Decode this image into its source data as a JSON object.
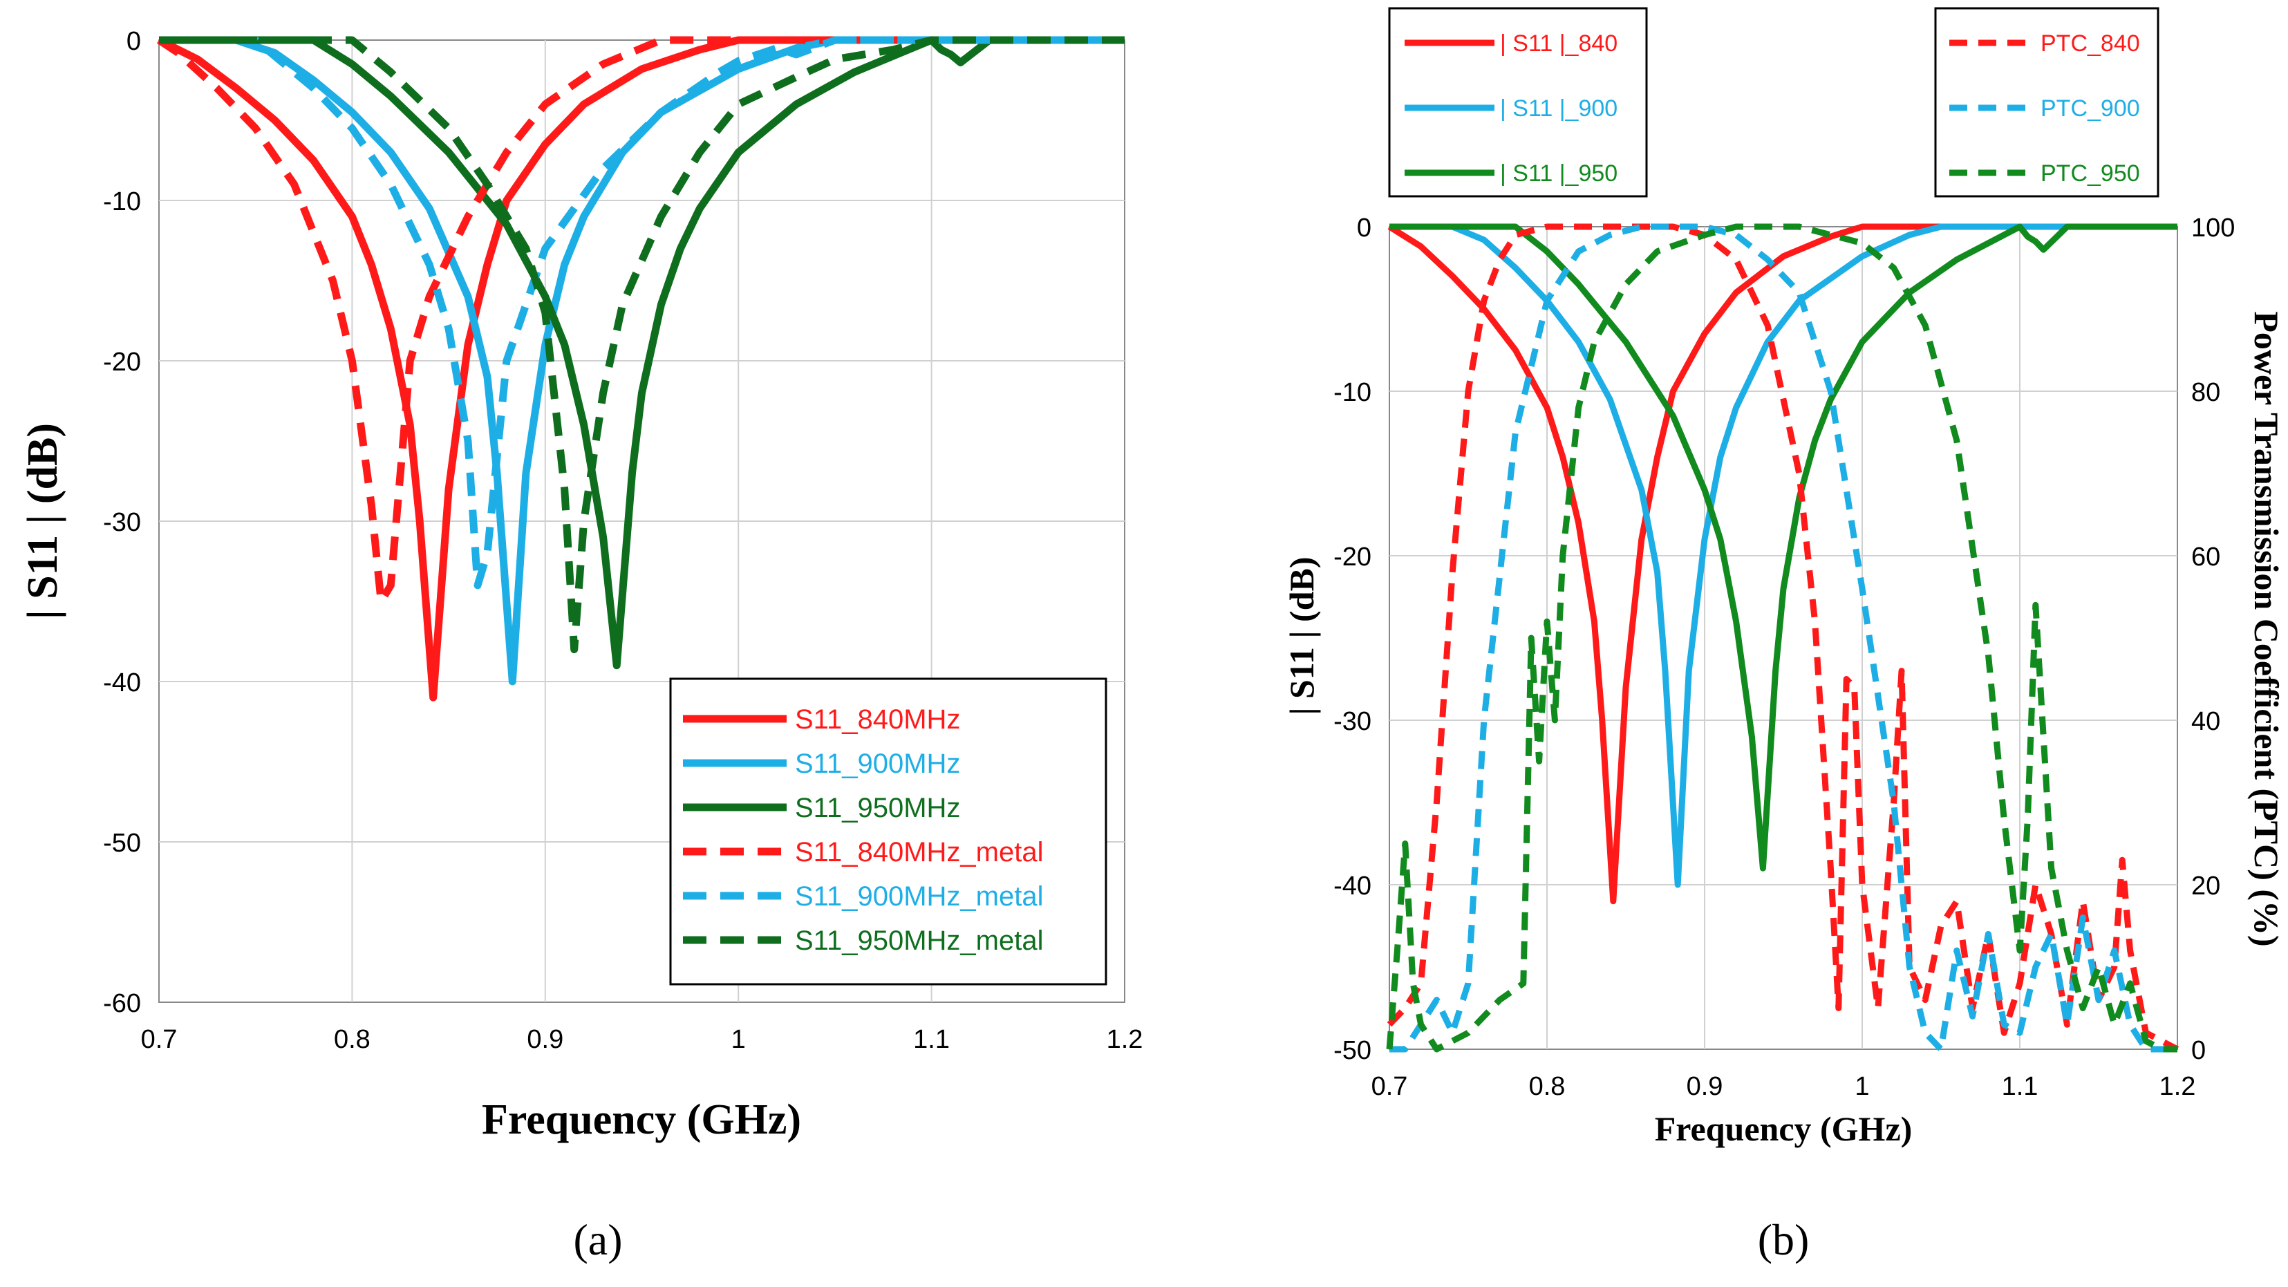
{
  "colors": {
    "red": "#ff1a1a",
    "blue": "#1eaee6",
    "green": "#0e6e1e",
    "green_b": "#118a1e"
  },
  "chart_data": [
    {
      "type": "line",
      "panel_label": "a",
      "xlabel": "Frequency (GHz)",
      "ylabel": "| S11 | (dB)",
      "xlim": [
        0.7,
        1.2
      ],
      "ylim": [
        -60,
        0
      ],
      "xticks": [
        "0.7",
        "0.8",
        "0.9",
        "1",
        "1.1",
        "1.2"
      ],
      "xtick_values": [
        0.7,
        0.8,
        0.9,
        1.0,
        1.1,
        1.2
      ],
      "yticks": [
        "0",
        "-10",
        "-20",
        "-30",
        "-40",
        "-50",
        "-60"
      ],
      "ytick_values": [
        0,
        -10,
        -20,
        -30,
        -40,
        -50,
        -60
      ],
      "legend_position": "bottom-right",
      "series": [
        {
          "name": "S11_840MHz",
          "color": "#ff1a1a",
          "dash": false,
          "x": [
            0.7,
            0.72,
            0.74,
            0.76,
            0.78,
            0.8,
            0.81,
            0.82,
            0.83,
            0.835,
            0.842,
            0.85,
            0.86,
            0.87,
            0.88,
            0.9,
            0.92,
            0.95,
            0.98,
            1.0,
            1.05,
            1.1,
            1.15,
            1.2
          ],
          "y": [
            0,
            -1.2,
            -3,
            -5,
            -7.5,
            -11,
            -14,
            -18,
            -24,
            -30,
            -41,
            -28,
            -19,
            -14,
            -10,
            -6.5,
            -4,
            -1.8,
            -0.6,
            0,
            0,
            0,
            0,
            0
          ]
        },
        {
          "name": "S11_900MHz",
          "color": "#1eaee6",
          "dash": false,
          "x": [
            0.7,
            0.74,
            0.76,
            0.78,
            0.8,
            0.82,
            0.84,
            0.86,
            0.87,
            0.875,
            0.883,
            0.89,
            0.9,
            0.91,
            0.92,
            0.94,
            0.96,
            1.0,
            1.03,
            1.05,
            1.1,
            1.15,
            1.2
          ],
          "y": [
            0,
            0,
            -0.8,
            -2.5,
            -4.5,
            -7,
            -10.5,
            -16,
            -21,
            -27,
            -40,
            -27,
            -19,
            -14,
            -11,
            -7,
            -4.5,
            -1.8,
            -0.5,
            0,
            0,
            0,
            0
          ]
        },
        {
          "name": "S11_950MHz",
          "color": "#0e6e1e",
          "dash": false,
          "x": [
            0.7,
            0.78,
            0.8,
            0.82,
            0.85,
            0.88,
            0.9,
            0.91,
            0.92,
            0.93,
            0.937,
            0.945,
            0.95,
            0.96,
            0.97,
            0.98,
            1.0,
            1.03,
            1.06,
            1.09,
            1.1,
            1.105,
            1.11,
            1.115,
            1.13,
            1.2
          ],
          "y": [
            0,
            0,
            -1.5,
            -3.5,
            -7,
            -11.5,
            -16,
            -19,
            -24,
            -31,
            -39,
            -27,
            -22,
            -16.5,
            -13,
            -10.5,
            -7,
            -4,
            -2,
            -0.5,
            0,
            -0.6,
            -0.9,
            -1.4,
            0,
            0
          ]
        },
        {
          "name": "S11_840MHz_metal",
          "color": "#ff1a1a",
          "dash": true,
          "x": [
            0.7,
            0.71,
            0.73,
            0.75,
            0.77,
            0.79,
            0.8,
            0.81,
            0.815,
            0.82,
            0.83,
            0.84,
            0.86,
            0.88,
            0.9,
            0.93,
            0.96,
            1.0,
            1.2
          ],
          "y": [
            0,
            -0.8,
            -3,
            -5.5,
            -9,
            -15,
            -20,
            -29,
            -35,
            -34,
            -20,
            -16,
            -11,
            -7,
            -4,
            -1.5,
            0,
            0,
            0
          ]
        },
        {
          "name": "S11_900MHz_metal",
          "color": "#1eaee6",
          "dash": true,
          "x": [
            0.7,
            0.75,
            0.78,
            0.8,
            0.82,
            0.84,
            0.85,
            0.86,
            0.865,
            0.87,
            0.88,
            0.9,
            0.93,
            0.96,
            0.99,
            1.0,
            1.02,
            1.03,
            1.05,
            1.2
          ],
          "y": [
            0,
            0,
            -3,
            -5.5,
            -9,
            -14,
            -18,
            -25,
            -34,
            -32,
            -20,
            -13,
            -8,
            -4.5,
            -2,
            -1.3,
            -0.5,
            -0.9,
            0,
            0
          ]
        },
        {
          "name": "S11_950MHz_metal",
          "color": "#0e6e1e",
          "dash": true,
          "x": [
            0.7,
            0.8,
            0.82,
            0.85,
            0.87,
            0.89,
            0.9,
            0.91,
            0.915,
            0.92,
            0.93,
            0.94,
            0.96,
            0.98,
            1.0,
            1.03,
            1.05,
            1.08,
            1.1,
            1.2
          ],
          "y": [
            0,
            0,
            -2,
            -5.5,
            -9,
            -13,
            -17,
            -28,
            -38,
            -30,
            -22,
            -16.5,
            -11,
            -7,
            -4,
            -2.3,
            -1.2,
            -0.6,
            0,
            0
          ]
        }
      ]
    },
    {
      "type": "line",
      "panel_label": "b",
      "xlabel": "Frequency (GHz)",
      "ylabel": "| S11 | (dB)",
      "y2label": "Power Transmission Coefficient (PTC) (%)",
      "xlim": [
        0.7,
        1.2
      ],
      "ylim": [
        -50,
        0
      ],
      "y2lim": [
        0,
        100
      ],
      "xticks": [
        "0.7",
        "0.8",
        "0.9",
        "1",
        "1.1",
        "1.2"
      ],
      "xtick_values": [
        0.7,
        0.8,
        0.9,
        1.0,
        1.1,
        1.2
      ],
      "yticks": [
        "0",
        "-10",
        "-20",
        "-30",
        "-40",
        "-50"
      ],
      "ytick_values": [
        0,
        -10,
        -20,
        -30,
        -40,
        -50
      ],
      "y2ticks": [
        "100",
        "80",
        "60",
        "40",
        "20",
        "0"
      ],
      "y2tick_values": [
        100,
        80,
        60,
        40,
        20,
        0
      ],
      "legend_position": "top, outside",
      "series": [
        {
          "name": "| S11 |_840",
          "color": "#ff1a1a",
          "dash": false,
          "axis": "left",
          "x": [
            0.7,
            0.72,
            0.74,
            0.76,
            0.78,
            0.8,
            0.81,
            0.82,
            0.83,
            0.835,
            0.842,
            0.85,
            0.86,
            0.87,
            0.88,
            0.9,
            0.92,
            0.95,
            0.98,
            1.0,
            1.05,
            1.1,
            1.15,
            1.2
          ],
          "y": [
            0,
            -1.2,
            -3,
            -5,
            -7.5,
            -11,
            -14,
            -18,
            -24,
            -30,
            -41,
            -28,
            -19,
            -14,
            -10,
            -6.5,
            -4,
            -1.8,
            -0.6,
            0,
            0,
            0,
            0,
            0
          ]
        },
        {
          "name": "| S11 |_900",
          "color": "#1eaee6",
          "dash": false,
          "axis": "left",
          "x": [
            0.7,
            0.74,
            0.76,
            0.78,
            0.8,
            0.82,
            0.84,
            0.86,
            0.87,
            0.875,
            0.883,
            0.89,
            0.9,
            0.91,
            0.92,
            0.94,
            0.96,
            1.0,
            1.03,
            1.05,
            1.1,
            1.15,
            1.2
          ],
          "y": [
            0,
            0,
            -0.8,
            -2.5,
            -4.5,
            -7,
            -10.5,
            -16,
            -21,
            -27,
            -40,
            -27,
            -19,
            -14,
            -11,
            -7,
            -4.5,
            -1.8,
            -0.5,
            0,
            0,
            0,
            0
          ]
        },
        {
          "name": "| S11 |_950",
          "color": "#118a1e",
          "dash": false,
          "axis": "left",
          "x": [
            0.7,
            0.78,
            0.8,
            0.82,
            0.85,
            0.88,
            0.9,
            0.91,
            0.92,
            0.93,
            0.937,
            0.945,
            0.95,
            0.96,
            0.97,
            0.98,
            1.0,
            1.03,
            1.06,
            1.09,
            1.1,
            1.105,
            1.11,
            1.115,
            1.13,
            1.2
          ],
          "y": [
            0,
            0,
            -1.5,
            -3.5,
            -7,
            -11.5,
            -16,
            -19,
            -24,
            -31,
            -39,
            -27,
            -22,
            -16.5,
            -13,
            -10.5,
            -7,
            -4,
            -2,
            -0.5,
            0,
            -0.6,
            -0.9,
            -1.4,
            0,
            0
          ]
        },
        {
          "name": "PTC_840",
          "color": "#ff1a1a",
          "dash": true,
          "axis": "right",
          "x": [
            0.7,
            0.71,
            0.72,
            0.73,
            0.74,
            0.75,
            0.76,
            0.77,
            0.78,
            0.8,
            0.82,
            0.84,
            0.86,
            0.88,
            0.9,
            0.92,
            0.94,
            0.96,
            0.97,
            0.98,
            0.985,
            0.99,
            0.995,
            1.0,
            1.01,
            1.02,
            1.025,
            1.03,
            1.04,
            1.05,
            1.06,
            1.07,
            1.08,
            1.09,
            1.1,
            1.11,
            1.12,
            1.13,
            1.14,
            1.15,
            1.16,
            1.165,
            1.17,
            1.18,
            1.2
          ],
          "y": [
            3,
            5,
            8,
            30,
            58,
            80,
            91,
            96,
            99,
            100,
            100,
            100,
            100,
            100,
            99,
            96,
            88,
            70,
            52,
            22,
            5,
            45,
            44,
            20,
            5,
            30,
            46,
            10,
            6,
            15,
            18,
            5,
            14,
            2,
            8,
            20,
            14,
            3,
            18,
            6,
            10,
            23,
            12,
            2,
            0
          ]
        },
        {
          "name": "PTC_900",
          "color": "#1eaee6",
          "dash": true,
          "axis": "right",
          "x": [
            0.7,
            0.71,
            0.72,
            0.73,
            0.74,
            0.75,
            0.76,
            0.78,
            0.8,
            0.82,
            0.84,
            0.86,
            0.88,
            0.9,
            0.92,
            0.94,
            0.96,
            0.98,
            1.0,
            1.02,
            1.03,
            1.04,
            1.05,
            1.055,
            1.06,
            1.07,
            1.08,
            1.09,
            1.1,
            1.11,
            1.12,
            1.13,
            1.14,
            1.15,
            1.16,
            1.17,
            1.18,
            1.2
          ],
          "y": [
            0,
            0,
            3,
            6,
            2,
            8,
            40,
            75,
            91,
            97,
            99,
            100,
            100,
            100,
            99,
            96,
            92,
            80,
            56,
            30,
            10,
            2,
            0,
            6,
            12,
            4,
            14,
            3,
            2,
            10,
            14,
            3,
            16,
            6,
            12,
            3,
            0,
            0
          ]
        },
        {
          "name": "PTC_950",
          "color": "#118a1e",
          "dash": true,
          "axis": "right",
          "x": [
            0.7,
            0.705,
            0.71,
            0.715,
            0.72,
            0.73,
            0.75,
            0.77,
            0.785,
            0.79,
            0.795,
            0.8,
            0.805,
            0.81,
            0.82,
            0.83,
            0.85,
            0.87,
            0.9,
            0.92,
            0.94,
            0.96,
            0.98,
            1.0,
            1.02,
            1.04,
            1.06,
            1.08,
            1.09,
            1.1,
            1.105,
            1.11,
            1.12,
            1.13,
            1.14,
            1.15,
            1.16,
            1.17,
            1.18,
            1.19,
            1.2
          ],
          "y": [
            0,
            12,
            25,
            8,
            3,
            0,
            2,
            6,
            8,
            50,
            35,
            52,
            40,
            60,
            78,
            86,
            93,
            97,
            99,
            100,
            100,
            100,
            99,
            98,
            95,
            88,
            74,
            48,
            28,
            12,
            28,
            54,
            22,
            12,
            5,
            10,
            3,
            8,
            1,
            0,
            0
          ]
        }
      ]
    }
  ],
  "panel_a": {
    "caption": "(a)",
    "legend": [
      "S11_840MHz",
      "S11_900MHz",
      "S11_950MHz",
      "S11_840MHz_metal",
      "S11_900MHz_metal",
      "S11_950MHz_metal"
    ]
  },
  "panel_b": {
    "caption": "(b)",
    "legend_left": [
      "| S11 |_840",
      "| S11 |_900",
      "| S11 |_950"
    ],
    "legend_right": [
      "PTC_840",
      "PTC_900",
      "PTC_950"
    ]
  }
}
